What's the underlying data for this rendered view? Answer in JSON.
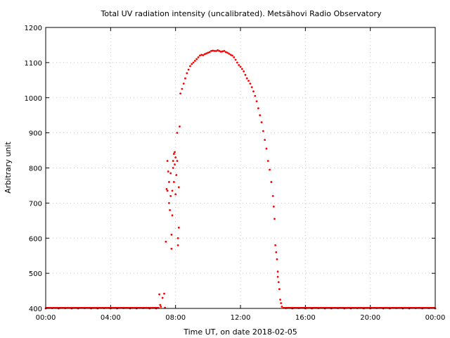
{
  "chart_data": {
    "type": "scatter",
    "title": "Total UV radiation intensity (uncalibrated). Metsähovi Radio Observatory",
    "xlabel": "Time UT, on date 2018-02-05",
    "ylabel": "Arbitrary unit",
    "xlim": [
      0,
      24
    ],
    "ylim": [
      400,
      1200
    ],
    "xticks": [
      0,
      4,
      8,
      12,
      16,
      20,
      24
    ],
    "xtick_labels": [
      "00:00",
      "04:00",
      "08:00",
      "12:00",
      "16:00",
      "20:00",
      "00:00"
    ],
    "yticks": [
      400,
      500,
      600,
      700,
      800,
      900,
      1000,
      1100,
      1200
    ],
    "ytick_labels": [
      "400",
      "500",
      "600",
      "700",
      "800",
      "900",
      "1000",
      "1100",
      "1200"
    ],
    "grid": true,
    "legend": "none",
    "marker_color": "#ff0000",
    "series": [
      {
        "x_unit": "hours UT",
        "points": [
          [
            0.0,
            400
          ],
          [
            0.4,
            401
          ],
          [
            0.8,
            400
          ],
          [
            1.2,
            401
          ],
          [
            1.6,
            400
          ],
          [
            2.0,
            400
          ],
          [
            2.4,
            401
          ],
          [
            2.8,
            400
          ],
          [
            3.2,
            400
          ],
          [
            3.6,
            401
          ],
          [
            4.0,
            400
          ],
          [
            4.4,
            400
          ],
          [
            4.8,
            401
          ],
          [
            5.2,
            400
          ],
          [
            5.6,
            400
          ],
          [
            6.0,
            401
          ],
          [
            6.4,
            400
          ],
          [
            6.8,
            400
          ],
          [
            7.0,
            440
          ],
          [
            7.05,
            410
          ],
          [
            7.1,
            405
          ],
          [
            7.2,
            430
          ],
          [
            7.3,
            442
          ],
          [
            7.35,
            402
          ],
          [
            7.4,
            590
          ],
          [
            7.45,
            740
          ],
          [
            7.5,
            735
          ],
          [
            7.5,
            820
          ],
          [
            7.55,
            790
          ],
          [
            7.6,
            760
          ],
          [
            7.6,
            700
          ],
          [
            7.65,
            680
          ],
          [
            7.7,
            720
          ],
          [
            7.7,
            785
          ],
          [
            7.75,
            570
          ],
          [
            7.75,
            610
          ],
          [
            7.8,
            665
          ],
          [
            7.8,
            735
          ],
          [
            7.85,
            800
          ],
          [
            7.85,
            820
          ],
          [
            7.9,
            840
          ],
          [
            7.9,
            760
          ],
          [
            7.95,
            845
          ],
          [
            7.95,
            810
          ],
          [
            8.0,
            830
          ],
          [
            8.0,
            725
          ],
          [
            8.05,
            780
          ],
          [
            8.1,
            820
          ],
          [
            8.1,
            900
          ],
          [
            8.15,
            600
          ],
          [
            8.15,
            580
          ],
          [
            8.2,
            630
          ],
          [
            8.2,
            745
          ],
          [
            8.25,
            918
          ],
          [
            8.3,
            1012
          ],
          [
            8.4,
            1025
          ],
          [
            8.5,
            1040
          ],
          [
            8.6,
            1055
          ],
          [
            8.7,
            1070
          ],
          [
            8.8,
            1080
          ],
          [
            8.9,
            1090
          ],
          [
            9.0,
            1096
          ],
          [
            9.1,
            1100
          ],
          [
            9.2,
            1105
          ],
          [
            9.3,
            1110
          ],
          [
            9.4,
            1115
          ],
          [
            9.5,
            1120
          ],
          [
            9.6,
            1122
          ],
          [
            9.7,
            1121
          ],
          [
            9.8,
            1124
          ],
          [
            9.9,
            1126
          ],
          [
            10.0,
            1128
          ],
          [
            10.1,
            1130
          ],
          [
            10.2,
            1133
          ],
          [
            10.3,
            1134
          ],
          [
            10.4,
            1133
          ],
          [
            10.5,
            1133
          ],
          [
            10.6,
            1135
          ],
          [
            10.7,
            1133
          ],
          [
            10.8,
            1131
          ],
          [
            10.9,
            1132
          ],
          [
            11.0,
            1133
          ],
          [
            11.1,
            1130
          ],
          [
            11.2,
            1128
          ],
          [
            11.3,
            1125
          ],
          [
            11.4,
            1122
          ],
          [
            11.5,
            1120
          ],
          [
            11.6,
            1115
          ],
          [
            11.7,
            1108
          ],
          [
            11.8,
            1100
          ],
          [
            11.9,
            1093
          ],
          [
            12.0,
            1088
          ],
          [
            12.1,
            1082
          ],
          [
            12.2,
            1075
          ],
          [
            12.3,
            1065
          ],
          [
            12.4,
            1055
          ],
          [
            12.5,
            1048
          ],
          [
            12.6,
            1040
          ],
          [
            12.7,
            1030
          ],
          [
            12.8,
            1018
          ],
          [
            12.9,
            1005
          ],
          [
            13.0,
            990
          ],
          [
            13.1,
            970
          ],
          [
            13.2,
            950
          ],
          [
            13.3,
            930
          ],
          [
            13.4,
            905
          ],
          [
            13.5,
            880
          ],
          [
            13.6,
            855
          ],
          [
            13.7,
            820
          ],
          [
            13.8,
            795
          ],
          [
            13.9,
            760
          ],
          [
            14.0,
            720
          ],
          [
            14.05,
            690
          ],
          [
            14.1,
            655
          ],
          [
            14.15,
            580
          ],
          [
            14.2,
            560
          ],
          [
            14.25,
            540
          ],
          [
            14.3,
            505
          ],
          [
            14.3,
            490
          ],
          [
            14.35,
            475
          ],
          [
            14.4,
            455
          ],
          [
            14.45,
            425
          ],
          [
            14.5,
            415
          ],
          [
            14.55,
            405
          ],
          [
            14.8,
            401
          ],
          [
            15.2,
            400
          ],
          [
            15.6,
            401
          ],
          [
            16.0,
            400
          ],
          [
            16.4,
            400
          ],
          [
            16.8,
            401
          ],
          [
            17.2,
            400
          ],
          [
            17.6,
            400
          ],
          [
            18.0,
            401
          ],
          [
            18.4,
            400
          ],
          [
            18.8,
            400
          ],
          [
            19.2,
            401
          ],
          [
            19.6,
            400
          ],
          [
            20.0,
            400
          ],
          [
            20.4,
            401
          ],
          [
            20.8,
            400
          ],
          [
            21.2,
            400
          ],
          [
            21.6,
            401
          ],
          [
            22.0,
            400
          ],
          [
            22.4,
            400
          ],
          [
            22.8,
            401
          ],
          [
            23.2,
            400
          ],
          [
            23.6,
            401
          ],
          [
            24.0,
            400
          ]
        ]
      }
    ]
  }
}
